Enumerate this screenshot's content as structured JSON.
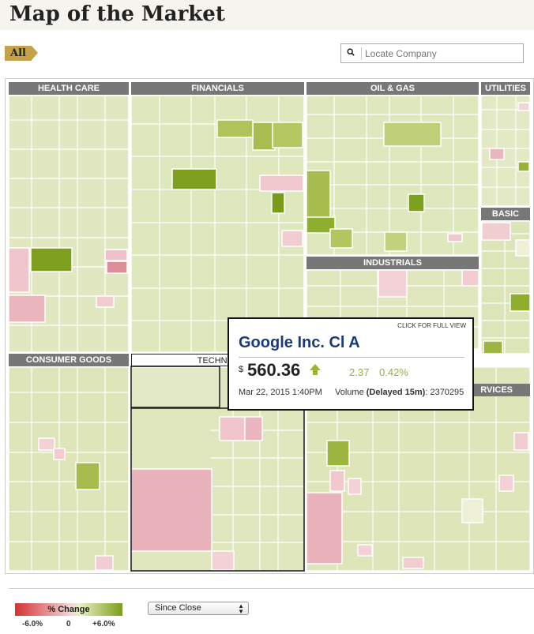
{
  "header": {
    "title": "Map of the Market"
  },
  "tabs": {
    "all_label": "All"
  },
  "search": {
    "placeholder": "Locate Company",
    "icon": "search-icon"
  },
  "sectors": [
    {
      "name": "HEALTH CARE"
    },
    {
      "name": "FINANCIALS"
    },
    {
      "name": "OIL & GAS"
    },
    {
      "name": "UTILITIES"
    },
    {
      "name": "BASIC"
    },
    {
      "name": "INDUSTRIALS"
    },
    {
      "name": "CONSUMER GOODS"
    },
    {
      "name": "TECHNOL"
    },
    {
      "name": "RVICES"
    }
  ],
  "tooltip": {
    "click_label": "CLICK FOR FULL VIEW",
    "company": "Google Inc. Cl A",
    "currency": "$",
    "price": "560.36",
    "change": "2.37",
    "change_pct": "0.42%",
    "datetime": "Mar 22, 2015 1:40PM",
    "volume_prefix": "Volume ",
    "volume_delay": "(Delayed 15m)",
    "volume_value": ": 2370295",
    "direction": "up"
  },
  "legend": {
    "title": "% Change",
    "min_label": "-6.0%",
    "mid_label": "0",
    "max_label": "+6.0%",
    "colors": {
      "negative": "#d63131",
      "neutral": "#eaf0c5",
      "positive": "#7a9e1a"
    }
  },
  "period_select": {
    "selected": "Since Close"
  }
}
